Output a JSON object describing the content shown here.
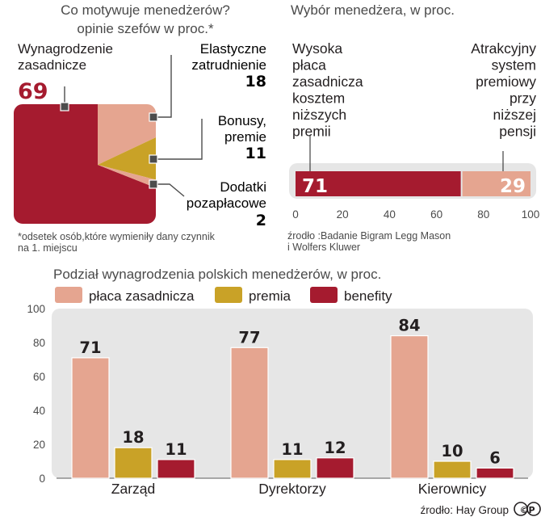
{
  "colors": {
    "base": "#e5a590",
    "bonus": "#c9a227",
    "benefits": "#a51b2f",
    "panel": "#e6e6e6",
    "axis": "#7a7a7a",
    "leader": "#4d4d4d"
  },
  "pie_chart": {
    "title_line1": "Co motywuje menedżerów?",
    "title_line2": "opinie szefów w proc.*",
    "footnote_line1": "*odsetek osób,które wymieniły dany czynnik",
    "footnote_line2": "na 1. miejscu",
    "slices": [
      {
        "label_line1": "Wynagrodzenie",
        "label_line2": "zasadnicze",
        "value": 69,
        "value_text": "69",
        "color": "#a51b2f"
      },
      {
        "label_line1": "Elastyczne",
        "label_line2": "zatrudnienie",
        "value": 18,
        "value_text": "18",
        "color": "#e5a590"
      },
      {
        "label_line1": "Bonusy,",
        "label_line2": "premie",
        "value": 11,
        "value_text": "11",
        "color": "#c9a227"
      },
      {
        "label_line1": "Dodatki",
        "label_line2": "pozapłacowe",
        "value": 2,
        "value_text": "2",
        "color": "#e5a590"
      }
    ]
  },
  "choice_chart": {
    "title": "Wybór menedżera, w proc.",
    "left_label": [
      "Wysoka",
      "płaca",
      "zasadnicza",
      "kosztem",
      "niższych",
      "premii"
    ],
    "right_label": [
      "Atrakcyjny",
      "system",
      "premiowy",
      "przy",
      "niższej",
      "pensji"
    ],
    "left_value": 71,
    "left_value_text": "71",
    "right_value": 29,
    "right_value_text": "29",
    "ticks": [
      "0",
      "20",
      "40",
      "60",
      "80",
      "100"
    ],
    "source_line1": "źrodło :Badanie Bigram Legg Mason",
    "source_line2": "i Wolfers Kluwer"
  },
  "chart_data": {
    "type": "bar",
    "title": "Podział wynagrodzenia polskich menedżerów, w proc.",
    "categories": [
      "Zarząd",
      "Dyrektorzy",
      "Kierownicy"
    ],
    "series": [
      {
        "name": "płaca zasadnicza",
        "values": [
          71,
          77,
          84
        ],
        "color": "#e5a590"
      },
      {
        "name": "premia",
        "values": [
          18,
          11,
          10
        ],
        "color": "#c9a227"
      },
      {
        "name": "benefity",
        "values": [
          11,
          12,
          6
        ],
        "color": "#a51b2f"
      }
    ],
    "ylim": [
      0,
      100
    ],
    "yticks": [
      "0",
      "20",
      "40",
      "60",
      "80",
      "100"
    ],
    "legend": "top",
    "source": "źrodło: Hay Group",
    "logo_text": "©P"
  }
}
